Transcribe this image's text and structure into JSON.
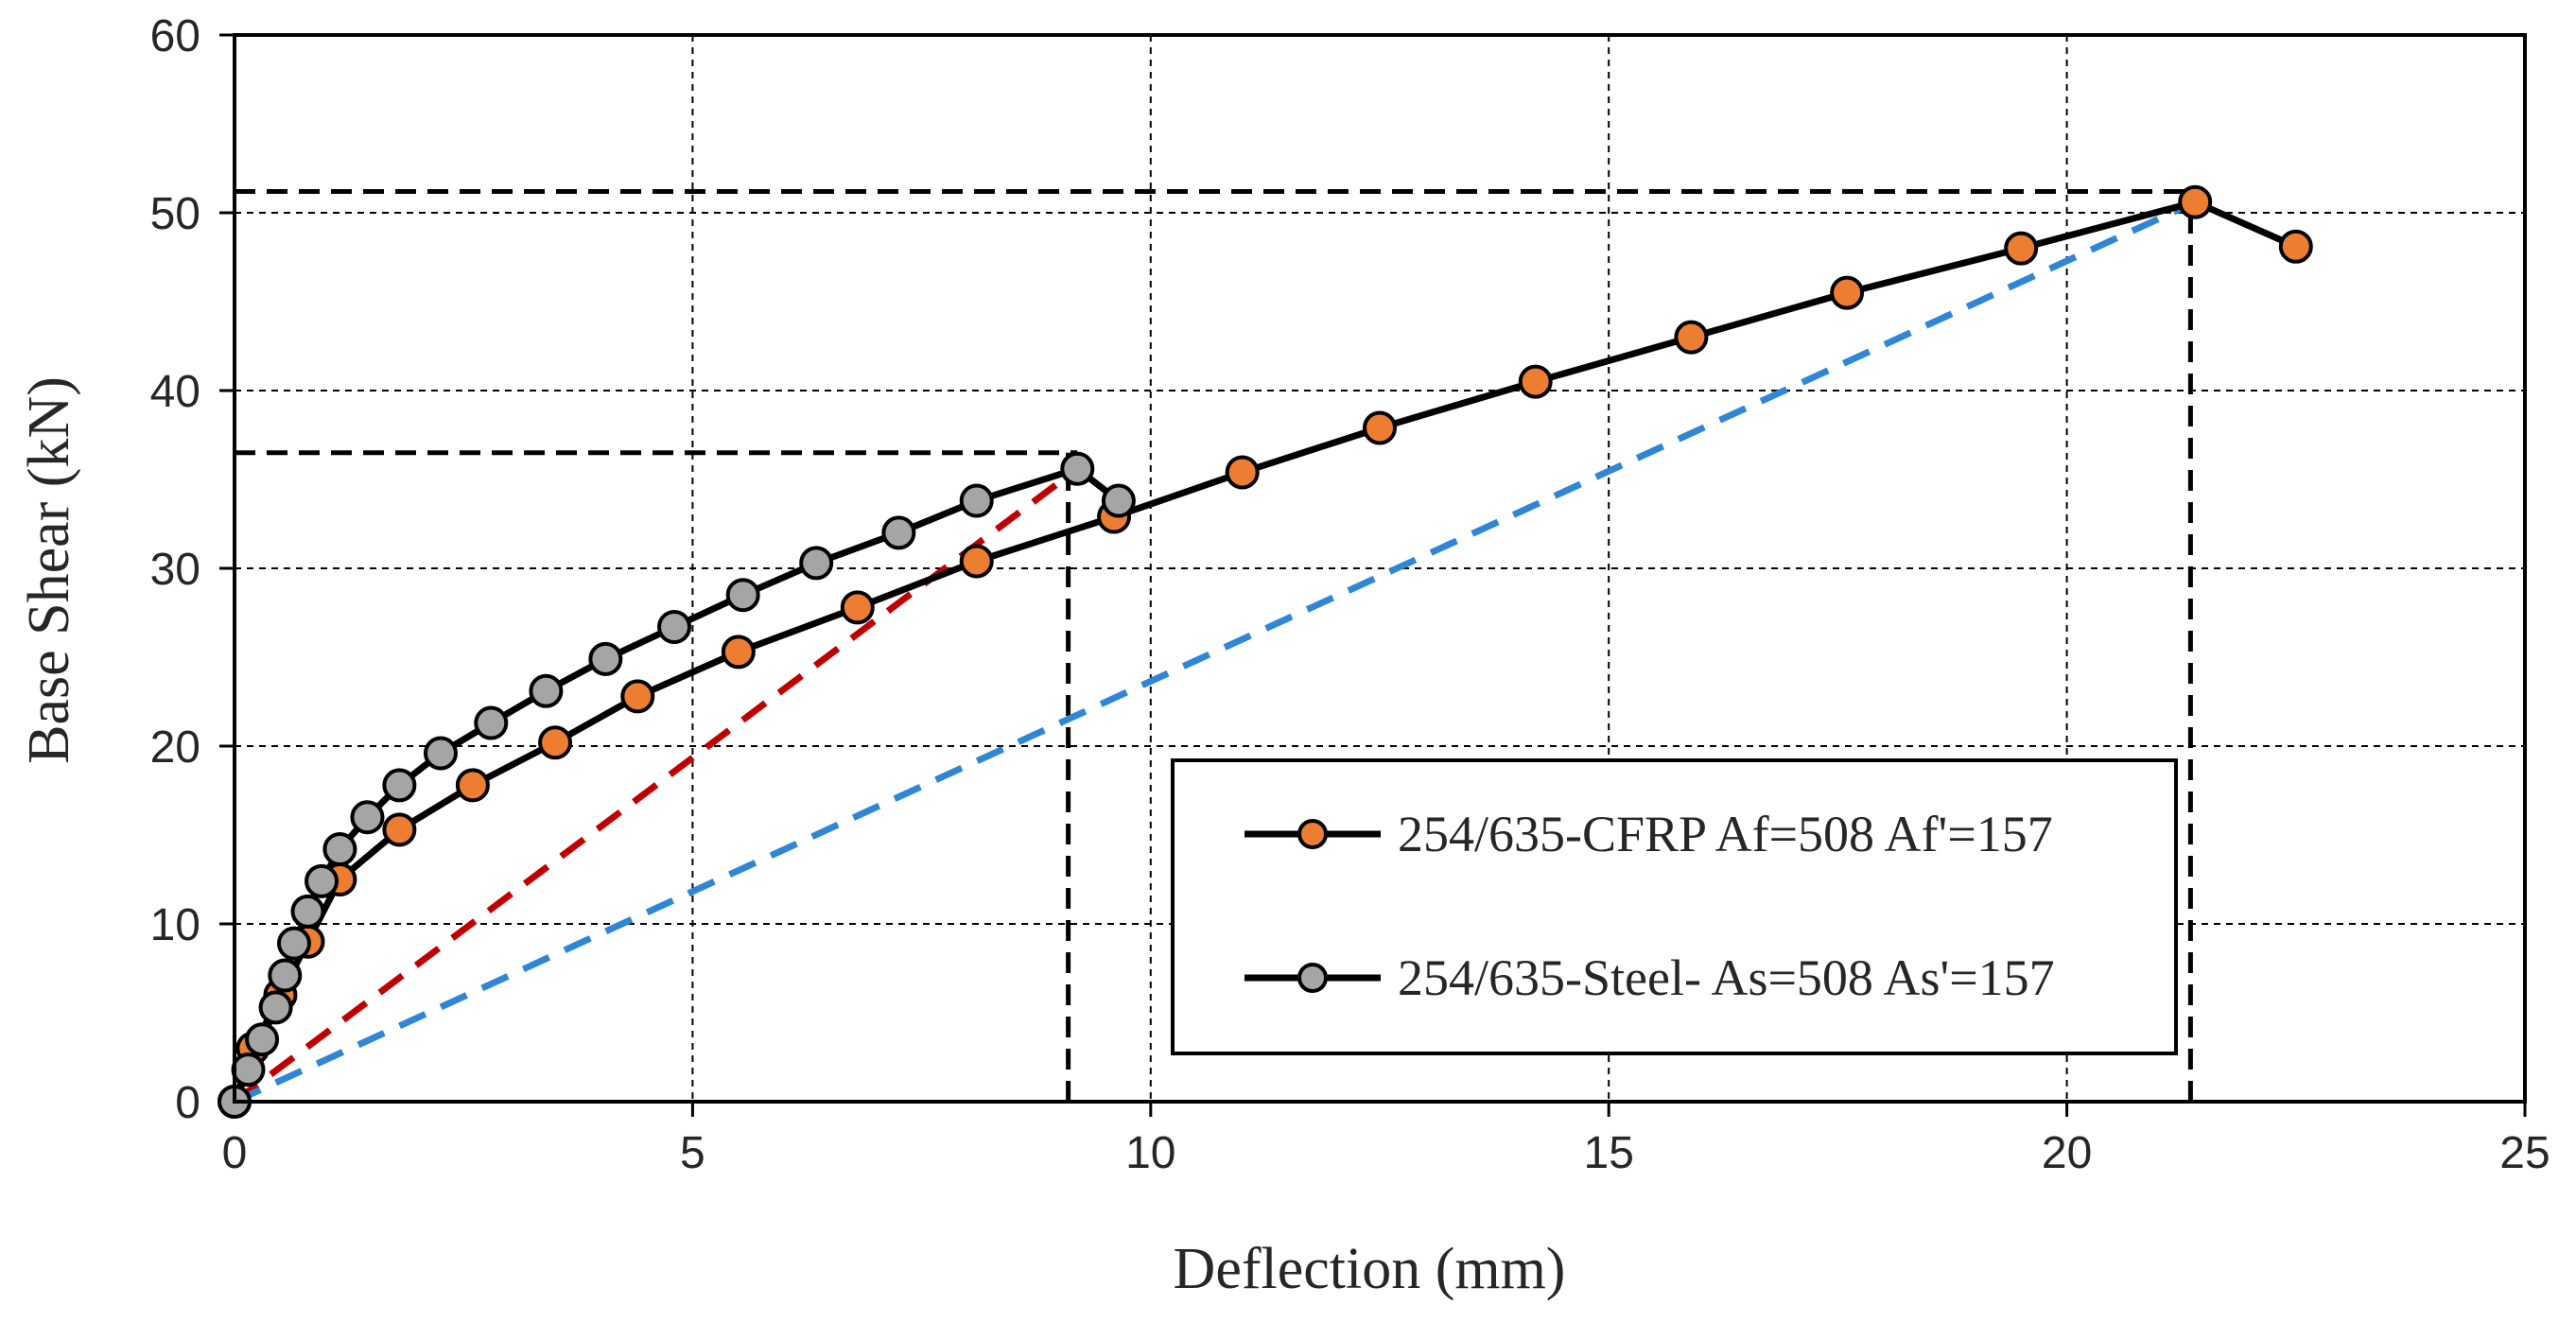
{
  "chart_data": {
    "type": "line",
    "title": "",
    "xlabel": "Deflection  (mm)",
    "ylabel": "Base Shear (kN)",
    "xlim": [
      0,
      25
    ],
    "ylim": [
      0,
      60
    ],
    "xticks": [
      0,
      5,
      10,
      15,
      20,
      25
    ],
    "yticks": [
      0,
      10,
      20,
      30,
      40,
      50,
      60
    ],
    "grid": true,
    "legend_position": "bottom-right",
    "series": [
      {
        "name": "254/635-CFRP Af=508 Af'=157",
        "line_color": "#000000",
        "marker_color": "#ED7D31",
        "x": [
          0,
          0.2,
          0.5,
          0.8,
          1.15,
          1.8,
          2.6,
          3.5,
          4.4,
          5.5,
          6.8,
          8.1,
          9.6,
          11.0,
          12.5,
          14.2,
          15.9,
          17.6,
          19.5,
          21.4,
          22.5
        ],
        "y": [
          0,
          3,
          6,
          9,
          12.5,
          15.3,
          17.8,
          20.2,
          22.8,
          25.3,
          27.8,
          30.4,
          32.9,
          35.4,
          37.9,
          40.5,
          43.0,
          45.5,
          48.0,
          50.6,
          48.1
        ]
      },
      {
        "name": "254/635-Steel- As=508 As'=157",
        "line_color": "#000000",
        "marker_color": "#A5A5A5",
        "x": [
          0,
          0.15,
          0.3,
          0.45,
          0.55,
          0.65,
          0.8,
          0.95,
          1.15,
          1.45,
          1.8,
          2.25,
          2.8,
          3.4,
          4.05,
          4.8,
          5.55,
          6.35,
          7.25,
          8.1,
          9.2,
          9.65
        ],
        "y": [
          0,
          1.8,
          3.5,
          5.3,
          7.1,
          8.9,
          10.7,
          12.4,
          14.2,
          16.0,
          17.8,
          19.6,
          21.3,
          23.1,
          24.9,
          26.7,
          28.5,
          30.3,
          32.0,
          33.8,
          35.6,
          33.8
        ]
      }
    ],
    "annotations": {
      "reference_lines": [
        {
          "kind": "horizontal",
          "y": 36.5,
          "x_end": 9.2,
          "color": "#000000"
        },
        {
          "kind": "vertical",
          "x": 9.1,
          "y_end": 36.5,
          "color": "#000000"
        },
        {
          "kind": "horizontal",
          "y": 51.2,
          "x_end": 21.45,
          "color": "#000000"
        },
        {
          "kind": "vertical",
          "x": 21.35,
          "y_end": 51.2,
          "color": "#000000"
        }
      ],
      "secant_lines": [
        {
          "from": [
            0,
            0
          ],
          "to": [
            9.2,
            35.6
          ],
          "color": "#C00000"
        },
        {
          "from": [
            0,
            0
          ],
          "to": [
            21.4,
            50.6
          ],
          "color": "#2E86D4"
        }
      ]
    }
  }
}
